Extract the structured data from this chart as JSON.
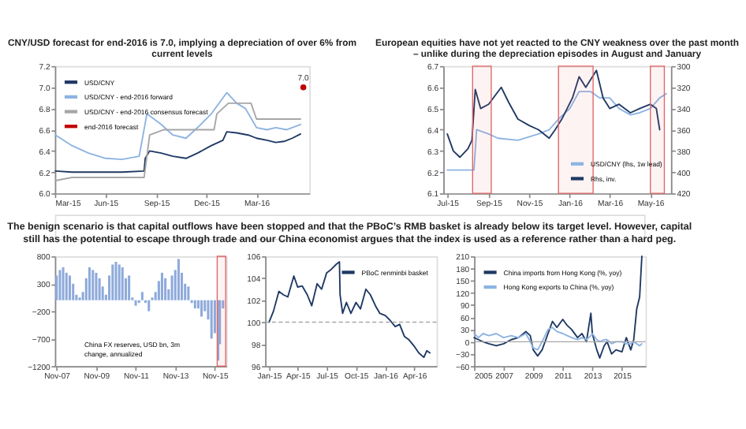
{
  "chart_data": [
    {
      "type": "line",
      "title": "CNY/USD forecast for end-2016 is 7.0, implying a depreciation of over 6% from current levels",
      "xlim": [
        "2015-03-01",
        "2016-06-05"
      ],
      "xticks": [
        {
          "value": "2015-03-01",
          "label": "Mar-15"
        },
        {
          "value": "2015-06-01",
          "label": "Jun-15"
        },
        {
          "value": "2015-09-01",
          "label": "Sep-15"
        },
        {
          "value": "2015-12-01",
          "label": "Dec-15"
        },
        {
          "value": "2016-03-01",
          "label": "Mar-16"
        }
      ],
      "ylim": [
        6.0,
        7.2
      ],
      "yticks": [
        {
          "value": 6,
          "label": "6.0"
        },
        6.2,
        6.4,
        6.6,
        6.8,
        {
          "value": 7,
          "label": "7.0"
        },
        7.2
      ],
      "legend": "top left",
      "series": [
        {
          "name": "USD/CNY",
          "color": "#1f3864",
          "x": [
            "2015-03-02",
            "2015-04-01",
            "2015-05-01",
            "2015-06-01",
            "2015-07-01",
            "2015-08-10",
            "2015-08-12",
            "2015-08-20",
            "2015-09-10",
            "2015-10-01",
            "2015-10-25",
            "2015-11-15",
            "2015-12-10",
            "2015-12-31",
            "2016-01-07",
            "2016-01-25",
            "2016-02-15",
            "2016-03-01",
            "2016-03-20",
            "2016-04-05",
            "2016-04-20",
            "2016-05-05",
            "2016-05-20"
          ],
          "values": [
            6.21,
            6.2,
            6.2,
            6.2,
            6.2,
            6.21,
            6.33,
            6.4,
            6.38,
            6.35,
            6.33,
            6.38,
            6.45,
            6.5,
            6.58,
            6.57,
            6.55,
            6.52,
            6.5,
            6.48,
            6.49,
            6.52,
            6.56
          ]
        },
        {
          "name": "USD/CNY - end-2016 forward",
          "color": "#8db3e2",
          "x": [
            "2015-03-02",
            "2015-04-01",
            "2015-05-01",
            "2015-06-01",
            "2015-07-01",
            "2015-08-01",
            "2015-08-15",
            "2015-09-10",
            "2015-10-01",
            "2015-10-25",
            "2015-11-15",
            "2015-12-10",
            "2016-01-07",
            "2016-01-25",
            "2016-02-10",
            "2016-03-01",
            "2016-03-20",
            "2016-04-05",
            "2016-04-25",
            "2016-05-20"
          ],
          "values": [
            6.55,
            6.45,
            6.38,
            6.33,
            6.32,
            6.35,
            6.75,
            6.65,
            6.55,
            6.52,
            6.62,
            6.75,
            6.95,
            6.85,
            6.8,
            6.62,
            6.6,
            6.62,
            6.6,
            6.65
          ]
        },
        {
          "name": "USD/CNY - end-2016 consensus forecast",
          "color": "#a6a6a6",
          "x": [
            "2015-03-02",
            "2015-04-01",
            "2015-08-10",
            "2015-08-20",
            "2015-09-15",
            "2015-12-15",
            "2015-12-20",
            "2016-01-10",
            "2016-02-20",
            "2016-03-01",
            "2016-05-20"
          ],
          "values": [
            6.12,
            6.15,
            6.15,
            6.55,
            6.6,
            6.6,
            6.75,
            6.85,
            6.85,
            6.7,
            6.7
          ]
        },
        {
          "name": "end-2016 forecast",
          "type": "scatter",
          "marker": "circle",
          "color": "#c00000",
          "x": [
            "2016-05-25"
          ],
          "values": [
            7.0
          ],
          "value_labels": [
            "7.0"
          ]
        }
      ]
    },
    {
      "type": "line",
      "title": "European equities have not yet reacted to the CNY weakness over the past month – unlike during the depreciation episodes in August and January",
      "xlim": [
        "2015-06-25",
        "2016-06-01"
      ],
      "xticks": [
        {
          "value": "2015-07-01",
          "label": "Jul-15"
        },
        {
          "value": "2015-09-01",
          "label": "Sep-15"
        },
        {
          "value": "2015-11-01",
          "label": "Nov-15"
        },
        {
          "value": "2016-01-01",
          "label": "Jan-16"
        },
        {
          "value": "2016-03-01",
          "label": "Mar-16"
        },
        {
          "value": "2016-05-01",
          "label": "May-16"
        }
      ],
      "ylim": [
        6.1,
        6.7
      ],
      "yticks": [
        6.1,
        6.2,
        6.3,
        6.4,
        6.5,
        6.6,
        6.7
      ],
      "y2lim": [
        420,
        300
      ],
      "y2ticks": [
        300,
        320,
        340,
        360,
        380,
        400,
        420
      ],
      "legend": "bottom right",
      "bands": [
        {
          "axis": "x",
          "from": "2015-08-08",
          "to": "2015-09-05",
          "color": "#e06666"
        },
        {
          "axis": "x",
          "from": "2015-12-15",
          "to": "2016-02-05",
          "color": "#e06666"
        },
        {
          "axis": "x",
          "from": "2016-05-01",
          "to": "2016-05-22",
          "color": "#e06666"
        }
      ],
      "series": [
        {
          "name": "USD/CNY (lhs, 1w lead)",
          "color": "#8db3e2",
          "x": [
            "2015-07-01",
            "2015-08-10",
            "2015-08-14",
            "2015-09-01",
            "2015-09-15",
            "2015-10-15",
            "2015-11-15",
            "2015-12-01",
            "2015-12-15",
            "2016-01-01",
            "2016-01-15",
            "2016-02-01",
            "2016-02-15",
            "2016-03-01",
            "2016-03-15",
            "2016-04-01",
            "2016-04-15",
            "2016-05-01",
            "2016-05-15",
            "2016-05-25"
          ],
          "values": [
            6.21,
            6.21,
            6.4,
            6.38,
            6.36,
            6.35,
            6.38,
            6.4,
            6.45,
            6.5,
            6.58,
            6.58,
            6.55,
            6.55,
            6.5,
            6.47,
            6.48,
            6.5,
            6.55,
            6.57
          ]
        },
        {
          "name": "Rhs, inv.",
          "axis": "y2",
          "color": "#1f3864",
          "x": [
            "2015-07-01",
            "2015-07-10",
            "2015-07-20",
            "2015-08-01",
            "2015-08-07",
            "2015-08-12",
            "2015-08-20",
            "2015-09-01",
            "2015-09-20",
            "2015-10-01",
            "2015-10-15",
            "2015-11-01",
            "2015-11-15",
            "2015-12-01",
            "2015-12-10",
            "2015-12-20",
            "2016-01-05",
            "2016-01-15",
            "2016-01-25",
            "2016-02-10",
            "2016-02-20",
            "2016-03-01",
            "2016-03-15",
            "2016-04-01",
            "2016-04-15",
            "2016-05-01",
            "2016-05-10",
            "2016-05-15"
          ],
          "values": [
            364,
            380,
            386,
            378,
            370,
            322,
            340,
            336,
            320,
            334,
            350,
            356,
            360,
            368,
            360,
            350,
            330,
            310,
            320,
            304,
            330,
            340,
            336,
            344,
            340,
            336,
            340,
            360
          ]
        }
      ]
    },
    {
      "type": "other",
      "annotations": [
        "The benign scenario is that capital outflows have been stopped and that the PBoC’s RMB basket is already below its target level. However, capital still has the potential to escape through trade and our China economist argues that the index is used as a reference rather than a hard peg."
      ]
    },
    {
      "type": "bar",
      "xlim": [
        "2007-10-01",
        "2016-06-01"
      ],
      "xticks": [
        {
          "value": "2007-11-01",
          "label": "Nov-07"
        },
        {
          "value": "2009-11-01",
          "label": "Nov-09"
        },
        {
          "value": "2011-11-01",
          "label": "Nov-11"
        },
        {
          "value": "2013-11-01",
          "label": "Nov-13"
        },
        {
          "value": "2015-11-01",
          "label": "Nov-15"
        }
      ],
      "ylim": [
        -1200,
        800
      ],
      "yticks": [
        -1200,
        -700,
        -200,
        300,
        800
      ],
      "legend": "bottom left",
      "bands": [
        {
          "axis": "x",
          "from": "2015-12-15",
          "to": "2016-05-20",
          "color": "#e06666"
        }
      ],
      "series": [
        {
          "name": "China FX reserves, USD bn, 3m change, annualized",
          "color": "#8eaadb",
          "x": [
            "2007-11-01",
            "2008-01-01",
            "2008-03-01",
            "2008-05-01",
            "2008-07-01",
            "2008-09-01",
            "2008-11-01",
            "2009-01-01",
            "2009-03-01",
            "2009-05-01",
            "2009-07-01",
            "2009-09-01",
            "2009-11-01",
            "2010-01-01",
            "2010-03-01",
            "2010-05-01",
            "2010-07-01",
            "2010-09-01",
            "2010-11-01",
            "2011-01-01",
            "2011-03-01",
            "2011-05-01",
            "2011-07-01",
            "2011-09-01",
            "2011-11-01",
            "2012-01-01",
            "2012-03-01",
            "2012-05-01",
            "2012-07-01",
            "2012-09-01",
            "2012-11-01",
            "2013-01-01",
            "2013-03-01",
            "2013-05-01",
            "2013-07-01",
            "2013-09-01",
            "2013-11-01",
            "2014-01-01",
            "2014-03-01",
            "2014-05-01",
            "2014-07-01",
            "2014-09-01",
            "2014-11-01",
            "2015-01-01",
            "2015-03-01",
            "2015-05-01",
            "2015-07-01",
            "2015-09-01",
            "2015-11-01",
            "2016-01-01",
            "2016-02-01",
            "2016-04-01"
          ],
          "values": [
            450,
            550,
            600,
            500,
            450,
            300,
            100,
            50,
            150,
            400,
            600,
            550,
            500,
            400,
            250,
            100,
            450,
            650,
            700,
            650,
            600,
            400,
            450,
            50,
            -100,
            -50,
            150,
            -50,
            -200,
            50,
            150,
            350,
            500,
            400,
            200,
            450,
            550,
            750,
            500,
            300,
            250,
            -50,
            -150,
            -150,
            -300,
            -200,
            -350,
            -700,
            -600,
            -1100,
            -800,
            -150
          ]
        }
      ]
    },
    {
      "type": "line",
      "xlim": [
        "2014-12-20",
        "2016-06-10"
      ],
      "xticks": [
        {
          "value": "2015-01-01",
          "label": "Jan-15"
        },
        {
          "value": "2015-04-01",
          "label": "Apr-15"
        },
        {
          "value": "2015-07-01",
          "label": "Jul-15"
        },
        {
          "value": "2015-10-01",
          "label": "Oct-15"
        },
        {
          "value": "2016-01-01",
          "label": "Jan-16"
        },
        {
          "value": "2016-04-01",
          "label": "Apr-16"
        }
      ],
      "ylim": [
        96,
        106
      ],
      "yticks": [
        96,
        98,
        100,
        102,
        104,
        106
      ],
      "legend": "top right",
      "ref_lines": [
        {
          "axis": "y",
          "value": 100,
          "color": "#a6a6a6",
          "line_style": "dashed"
        }
      ],
      "series": [
        {
          "name": "PBoC renminbi basket",
          "color": "#1f3864",
          "x": [
            "2015-01-01",
            "2015-01-15",
            "2015-02-01",
            "2015-02-15",
            "2015-03-01",
            "2015-03-20",
            "2015-04-01",
            "2015-04-15",
            "2015-05-01",
            "2015-05-15",
            "2015-06-01",
            "2015-06-15",
            "2015-07-01",
            "2015-07-15",
            "2015-08-01",
            "2015-08-10",
            "2015-08-12",
            "2015-08-20",
            "2015-09-01",
            "2015-09-15",
            "2015-10-01",
            "2015-10-15",
            "2015-11-01",
            "2015-11-15",
            "2015-12-01",
            "2015-12-15",
            "2016-01-01",
            "2016-01-15",
            "2016-02-01",
            "2016-02-15",
            "2016-03-01",
            "2016-03-15",
            "2016-04-01",
            "2016-04-15",
            "2016-05-01",
            "2016-05-10",
            "2016-05-20"
          ],
          "values": [
            100,
            101,
            102.8,
            102.5,
            102.3,
            104.2,
            103.2,
            103.3,
            102.5,
            101.5,
            103.5,
            103,
            104.5,
            104.8,
            105.3,
            105.5,
            102.5,
            100.8,
            101.8,
            100.8,
            101.8,
            101.2,
            103,
            102.5,
            101.5,
            100.8,
            100.6,
            100.2,
            99.6,
            99.8,
            98.7,
            98.4,
            97.8,
            97.2,
            96.8,
            97.4,
            97.2
          ]
        }
      ]
    },
    {
      "type": "line",
      "xlim": [
        2005,
        2016.6
      ],
      "xticks": [
        2005,
        2007,
        2009,
        2011,
        2013,
        2015
      ],
      "ylim": [
        -60,
        210
      ],
      "yticks": [
        -60,
        -30,
        0,
        30,
        60,
        90,
        120,
        150,
        180,
        210
      ],
      "legend": "top left",
      "ref_lines": [
        {
          "axis": "y",
          "value": 0,
          "color": "#a6a6a6",
          "line_style": "solid"
        }
      ],
      "series": [
        {
          "name": "China imports from Hong Kong (%, yoy)",
          "color": "#1f3864",
          "x": [
            2005,
            2005.3,
            2005.6,
            2006,
            2006.5,
            2007,
            2007.5,
            2008,
            2008.5,
            2008.8,
            2009,
            2009.3,
            2009.6,
            2010,
            2010.3,
            2010.6,
            2011,
            2011.3,
            2011.6,
            2012,
            2012.3,
            2012.6,
            2012.9,
            2013,
            2013.3,
            2013.5,
            2013.8,
            2014,
            2014.3,
            2014.6,
            2015,
            2015.3,
            2015.6,
            2015.8,
            2016,
            2016.2,
            2016.35
          ],
          "values": [
            10,
            5,
            0,
            -5,
            -10,
            -5,
            5,
            10,
            25,
            15,
            -20,
            -35,
            -20,
            20,
            50,
            35,
            55,
            40,
            30,
            10,
            20,
            0,
            70,
            20,
            -20,
            -40,
            -10,
            0,
            -30,
            -20,
            -25,
            10,
            -20,
            5,
            80,
            110,
            210
          ]
        },
        {
          "name": "Hong Kong exports to China (%, yoy)",
          "color": "#8db3e2",
          "x": [
            2005,
            2005.3,
            2005.6,
            2006,
            2006.5,
            2007,
            2007.5,
            2008,
            2008.5,
            2008.8,
            2009,
            2009.3,
            2009.6,
            2010,
            2010.3,
            2010.6,
            2011,
            2011.3,
            2011.6,
            2012,
            2012.3,
            2012.6,
            2012.9,
            2013,
            2013.3,
            2013.5,
            2013.8,
            2014,
            2014.3,
            2014.6,
            2015,
            2015.3,
            2015.6,
            2015.8,
            2016,
            2016.2,
            2016.35
          ],
          "values": [
            20,
            10,
            20,
            15,
            20,
            10,
            15,
            10,
            20,
            0,
            -15,
            -20,
            0,
            30,
            35,
            25,
            20,
            15,
            10,
            5,
            10,
            5,
            15,
            20,
            5,
            0,
            5,
            5,
            -5,
            0,
            0,
            -5,
            -5,
            0,
            -5,
            -10,
            -5
          ]
        }
      ]
    }
  ]
}
